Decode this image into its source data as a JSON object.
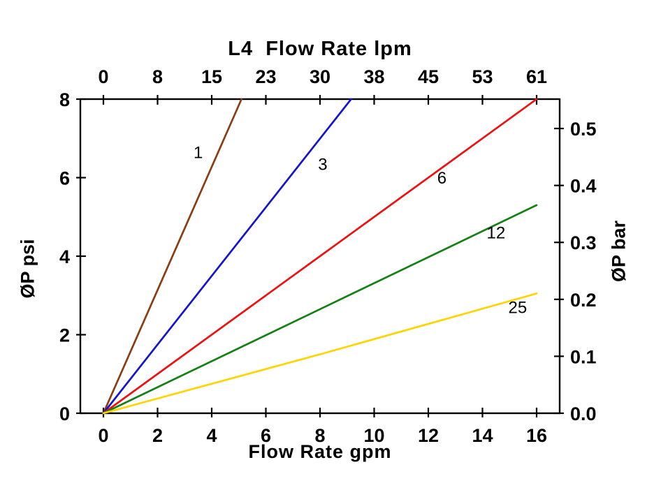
{
  "page": {
    "background": "#ffffff"
  },
  "chart_data": {
    "type": "line",
    "title": "L4  Flow Rate lpm",
    "xlabel": "Flow Rate gpm",
    "ylabel_left": "ØP psi",
    "ylabel_right": "ØP bar",
    "x_range_gpm": [
      0,
      16
    ],
    "y_range_psi": [
      0,
      8
    ],
    "grid": false,
    "legend": "inline-labels",
    "axes": {
      "bottom": {
        "name": "Flow Rate gpm",
        "tick_values": [
          0,
          2,
          4,
          6,
          8,
          10,
          12,
          14,
          16
        ],
        "tick_labels": [
          "0",
          "2",
          "4",
          "6",
          "8",
          "10",
          "12",
          "14",
          "16"
        ]
      },
      "top": {
        "name": "L4 Flow Rate lpm",
        "tick_values": [
          0,
          2,
          4,
          6,
          8,
          10,
          12,
          14,
          16
        ],
        "tick_labels": [
          "0",
          "8",
          "15",
          "23",
          "30",
          "38",
          "45",
          "53",
          "61"
        ]
      },
      "left": {
        "name": "ØP psi",
        "tick_values": [
          0,
          2,
          4,
          6,
          8
        ],
        "tick_labels": [
          "0",
          "2",
          "4",
          "6",
          "8"
        ]
      },
      "right": {
        "name": "ØP bar",
        "tick_values_bar": [
          0,
          0.1,
          0.2,
          0.3,
          0.4,
          0.5
        ],
        "tick_labels": [
          "0.0",
          "0.1",
          "0.2",
          "0.3",
          "0.4",
          "0.5"
        ],
        "psi_per_bar": 14.5038
      }
    },
    "series": [
      {
        "label": "1",
        "color": "#8a3d10",
        "points_gpm_psi": [
          [
            0,
            0
          ],
          [
            5.1,
            8
          ]
        ],
        "label_pos": [
          3.5,
          6.5
        ]
      },
      {
        "label": "3",
        "color": "#1515d0",
        "points_gpm_psi": [
          [
            0,
            0
          ],
          [
            9.15,
            8
          ]
        ],
        "label_pos": [
          8.1,
          6.2
        ]
      },
      {
        "label": "6",
        "color": "#ee1111",
        "points_gpm_psi": [
          [
            0,
            0
          ],
          [
            8,
            4.0
          ],
          [
            16,
            8
          ]
        ],
        "label_pos": [
          12.5,
          5.85
        ]
      },
      {
        "label": "12",
        "color": "#148014",
        "points_gpm_psi": [
          [
            0,
            0
          ],
          [
            8,
            2.65
          ],
          [
            16,
            5.3
          ]
        ],
        "label_pos": [
          14.5,
          4.45
        ]
      },
      {
        "label": "25",
        "color": "#ffd400",
        "points_gpm_psi": [
          [
            0,
            0
          ],
          [
            8,
            1.5
          ],
          [
            16,
            3.05
          ]
        ],
        "label_pos": [
          15.3,
          2.55
        ]
      }
    ]
  }
}
